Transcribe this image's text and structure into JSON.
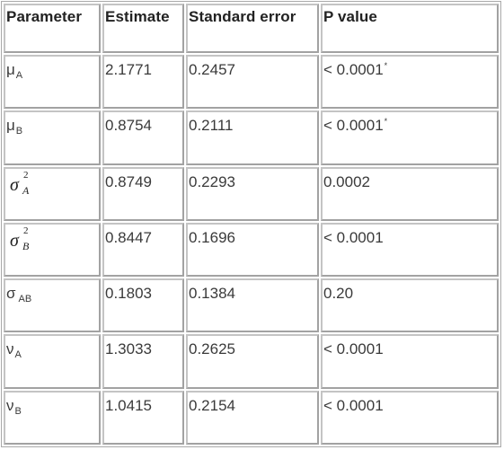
{
  "table": {
    "headers": [
      "Parameter",
      "Estimate",
      "Standard error",
      "P value"
    ],
    "rows": [
      {
        "param_main": "μ",
        "param_sub": "A",
        "estimate": "2.1771",
        "se": "0.2457",
        "p": "< 0.0001",
        "mark": "*"
      },
      {
        "param_main": "μ",
        "param_sub": "B",
        "estimate": "0.8754",
        "se": "0.2111",
        "p": "< 0.0001",
        "mark": "*"
      },
      {
        "param_main": "σ",
        "param_sup": "2",
        "param_sub": "A",
        "estimate": "0.8749",
        "se": "0.2293",
        "p": "0.0002",
        "mark": ""
      },
      {
        "param_main": "σ",
        "param_sup": "2",
        "param_sub": "B",
        "estimate": "0.8447",
        "se": "0.1696",
        "p": "< 0.0001",
        "mark": ""
      },
      {
        "param_main": "σ",
        "param_sub": "AB",
        "estimate": "0.1803",
        "se": "0.1384",
        "p": "0.20",
        "mark": ""
      },
      {
        "param_main": "ν",
        "param_sub": "A",
        "estimate": "1.3033",
        "se": "0.2625",
        "p": "< 0.0001",
        "mark": ""
      },
      {
        "param_main": "ν",
        "param_sub": "B",
        "estimate": "1.0415",
        "se": "0.2154",
        "p": "< 0.0001",
        "mark": ""
      }
    ]
  }
}
